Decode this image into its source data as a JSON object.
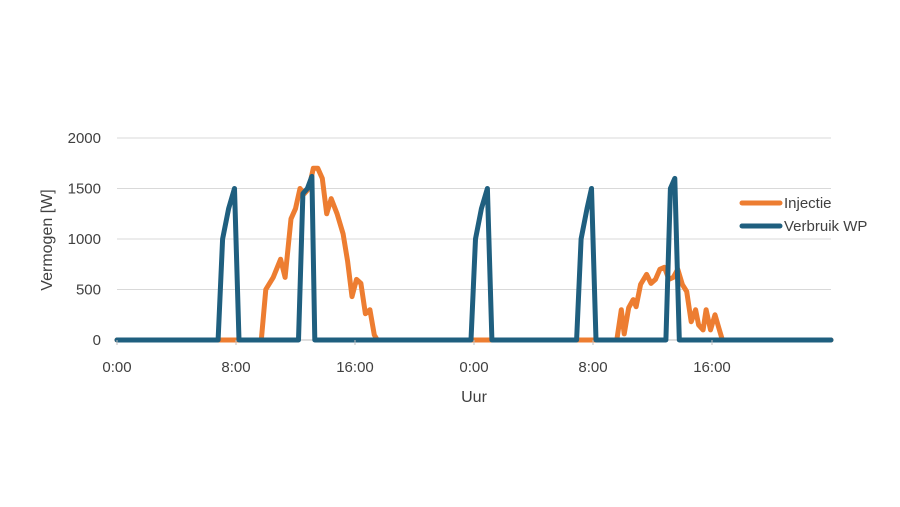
{
  "chart_data": {
    "type": "line",
    "title": "",
    "xlabel": "Uur",
    "ylabel": "Vermogen [W]",
    "ylim": [
      0,
      2000
    ],
    "xlim": [
      0,
      48
    ],
    "x_ticks": [
      {
        "value": 0,
        "label": "0:00"
      },
      {
        "value": 8,
        "label": "8:00"
      },
      {
        "value": 16,
        "label": "16:00"
      },
      {
        "value": 24,
        "label": "0:00"
      },
      {
        "value": 32,
        "label": "8:00"
      },
      {
        "value": 40,
        "label": "16:00"
      }
    ],
    "y_ticks": [
      {
        "value": 0,
        "label": "0"
      },
      {
        "value": 500,
        "label": "500"
      },
      {
        "value": 1000,
        "label": "1000"
      },
      {
        "value": 1500,
        "label": "1500"
      },
      {
        "value": 2000,
        "label": "2000"
      }
    ],
    "grid": "horizontal",
    "legend_position": "right",
    "series": [
      {
        "name": "Injectie",
        "color": "#ED7D31",
        "points": [
          [
            0,
            0
          ],
          [
            9.7,
            0
          ],
          [
            10,
            500
          ],
          [
            10.5,
            620
          ],
          [
            11,
            800
          ],
          [
            11.3,
            620
          ],
          [
            11.7,
            1200
          ],
          [
            12,
            1300
          ],
          [
            12.3,
            1500
          ],
          [
            12.6,
            1450
          ],
          [
            12.9,
            1500
          ],
          [
            13.2,
            1700
          ],
          [
            13.5,
            1700
          ],
          [
            13.8,
            1600
          ],
          [
            14.1,
            1250
          ],
          [
            14.4,
            1400
          ],
          [
            14.8,
            1250
          ],
          [
            15.2,
            1050
          ],
          [
            15.5,
            780
          ],
          [
            15.8,
            430
          ],
          [
            16.1,
            600
          ],
          [
            16.4,
            560
          ],
          [
            16.7,
            260
          ],
          [
            17,
            300
          ],
          [
            17.3,
            50
          ],
          [
            17.5,
            0
          ],
          [
            33.6,
            0
          ],
          [
            33.9,
            300
          ],
          [
            34.1,
            60
          ],
          [
            34.4,
            320
          ],
          [
            34.7,
            400
          ],
          [
            34.9,
            330
          ],
          [
            35.2,
            550
          ],
          [
            35.6,
            650
          ],
          [
            35.9,
            560
          ],
          [
            36.2,
            600
          ],
          [
            36.5,
            700
          ],
          [
            36.8,
            720
          ],
          [
            37.1,
            600
          ],
          [
            37.4,
            620
          ],
          [
            37.7,
            700
          ],
          [
            38,
            550
          ],
          [
            38.3,
            480
          ],
          [
            38.6,
            180
          ],
          [
            38.9,
            300
          ],
          [
            39.1,
            150
          ],
          [
            39.4,
            100
          ],
          [
            39.6,
            300
          ],
          [
            39.9,
            100
          ],
          [
            40.2,
            250
          ],
          [
            40.5,
            100
          ],
          [
            40.7,
            0
          ],
          [
            48,
            0
          ]
        ]
      },
      {
        "name": "Verbruik WP",
        "color": "#1F5F7F",
        "points": [
          [
            0,
            0
          ],
          [
            6.8,
            0
          ],
          [
            7.1,
            1000
          ],
          [
            7.5,
            1300
          ],
          [
            7.9,
            1500
          ],
          [
            8.2,
            0
          ],
          [
            12.2,
            0
          ],
          [
            12.5,
            1450
          ],
          [
            12.8,
            1500
          ],
          [
            13.1,
            1620
          ],
          [
            13.3,
            0
          ],
          [
            23.8,
            0
          ],
          [
            24.1,
            1000
          ],
          [
            24.5,
            1300
          ],
          [
            24.9,
            1500
          ],
          [
            25.2,
            0
          ],
          [
            30.9,
            0
          ],
          [
            31.2,
            1000
          ],
          [
            31.6,
            1300
          ],
          [
            31.9,
            1500
          ],
          [
            32.2,
            0
          ],
          [
            36.9,
            0
          ],
          [
            37.2,
            1500
          ],
          [
            37.5,
            1600
          ],
          [
            37.8,
            0
          ],
          [
            48,
            0
          ]
        ]
      }
    ]
  }
}
